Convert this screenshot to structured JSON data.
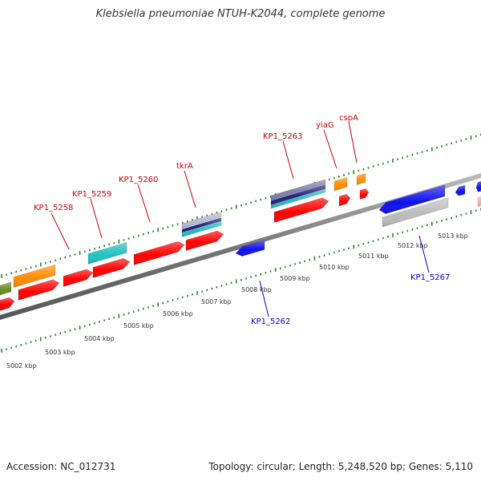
{
  "title": "Klebsiella pneumoniae NTUH-K2044, complete genome",
  "footer": {
    "accession": "Accession: NC_012731",
    "topology": "Topology: circular; Length: 5,248,520 bp; Genes: 5,110"
  },
  "colors": {
    "backbone": "#888888",
    "tick": "#228b22",
    "forward_label": "#cc0000",
    "reverse_label": "#0000cc",
    "red": "#ff0000",
    "orange": "#ff8c00",
    "cyan": "#20c0c0",
    "blue": "#1010ee",
    "olive": "#6b8e23",
    "grey": "#bbbbbb",
    "pink": "#ffb0b0",
    "navy": "#202080",
    "slate": "#8080aa"
  },
  "scale_labels": [
    "5002 kbp",
    "5003 kbp",
    "5004 kbp",
    "5005 kbp",
    "5006 kbp",
    "5007 kbp",
    "5008 kbp",
    "5009 kbp",
    "5010 kbp",
    "5011 kbp",
    "5012 kbp",
    "5013 kbp"
  ],
  "forward_gene_labels": [
    "KP1_5258",
    "KP1_5259",
    "KP1_5260",
    "tkrA",
    "KP1_5263",
    "yiaG",
    "cspA"
  ],
  "reverse_gene_labels": [
    "KP1_5262",
    "KP1_5267"
  ]
}
